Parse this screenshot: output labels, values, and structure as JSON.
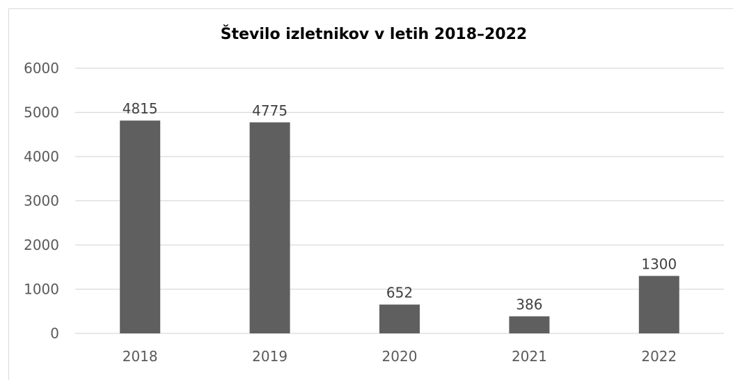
{
  "chart_data": {
    "type": "bar",
    "title": "Število izletnikov v letih 2018–2022",
    "categories": [
      "2018",
      "2019",
      "2020",
      "2021",
      "2022"
    ],
    "values": [
      4815,
      4775,
      652,
      386,
      1300
    ],
    "xlabel": "",
    "ylabel": "",
    "ylim": [
      0,
      6000
    ],
    "yticks": [
      0,
      1000,
      2000,
      3000,
      4000,
      5000,
      6000
    ],
    "grid": true,
    "legend": "none",
    "data_labels": true,
    "colors": {
      "bar": "#5f5f5f",
      "grid": "#d9d9d9",
      "axis": "#d9d9d9"
    }
  }
}
